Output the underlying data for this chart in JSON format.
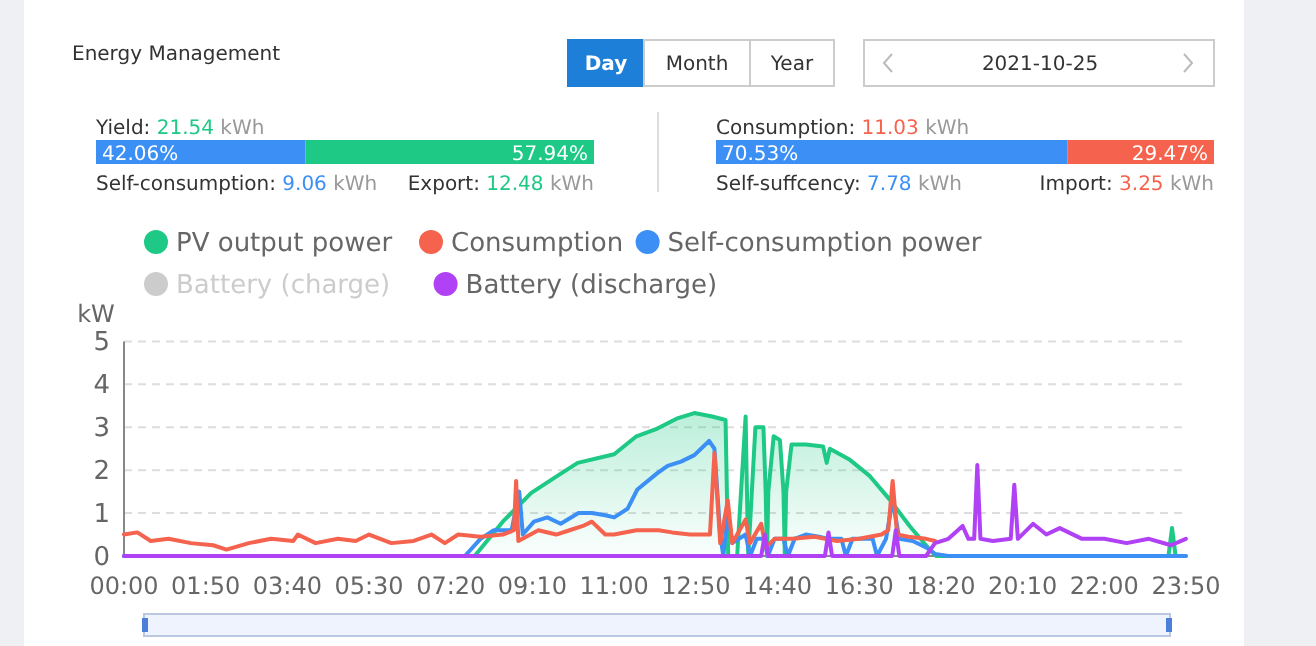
{
  "chart_data": [
    {
      "type": "other",
      "title": "Energy Management",
      "annotations": [
        "Day",
        "Month",
        "Year",
        "2021-10-25",
        "Yield: 21.54 kWh",
        "42.06%",
        "57.94%",
        "Self-consumption: 9.06 kWh",
        "Export: 12.48 kWh",
        "Consumption: 11.03 kWh",
        "70.53%",
        "29.47%",
        "Self-suffcency: 7.78 kWh",
        "Import: 3.25 kWh"
      ]
    },
    {
      "type": "line",
      "ylabel": "kW",
      "xlim": [
        0,
        23.8333
      ],
      "xticks": [
        {
          "value": 0,
          "label": "00:00"
        },
        {
          "value": 1.8333,
          "label": "01:50"
        },
        {
          "value": 3.6667,
          "label": "03:40"
        },
        {
          "value": 5.5,
          "label": "05:30"
        },
        {
          "value": 7.3333,
          "label": "07:20"
        },
        {
          "value": 9.1667,
          "label": "09:10"
        },
        {
          "value": 11,
          "label": "11:00"
        },
        {
          "value": 12.8333,
          "label": "12:50"
        },
        {
          "value": 14.6667,
          "label": "14:40"
        },
        {
          "value": 16.5,
          "label": "16:30"
        },
        {
          "value": 18.3333,
          "label": "18:20"
        },
        {
          "value": 20.1667,
          "label": "20:10"
        },
        {
          "value": 22,
          "label": "22:00"
        },
        {
          "value": 23.8333,
          "label": "23:50"
        }
      ],
      "ylim": [
        0,
        5
      ],
      "yticks": [
        0,
        1,
        2,
        3,
        4,
        5
      ],
      "grid": "y",
      "legend": "top",
      "marker": "none",
      "series": [
        {
          "name": "PV output power",
          "type": "area",
          "color": "#1dc985",
          "x": [
            0,
            7.87,
            8.5,
            9.14,
            9.7,
            10.18,
            11,
            11.5,
            11.97,
            12.4,
            12.8,
            13.2,
            13.5,
            13.53,
            13.56,
            13.76,
            13.95,
            13.98,
            14.01,
            14.17,
            14.35,
            14.4,
            14.43,
            14.46,
            14.58,
            14.72,
            14.8,
            14.83,
            14.86,
            14.98,
            15.3,
            15.69,
            15.77,
            15.84,
            16.29,
            16.74,
            17.18,
            17.63,
            18.08,
            18.23,
            23.44,
            23.52,
            23.6,
            23.83
          ],
          "values": [
            0,
            0,
            0.8,
            1.47,
            1.85,
            2.17,
            2.37,
            2.79,
            2.97,
            3.2,
            3.33,
            3.25,
            3.17,
            1.5,
            0,
            0,
            3.25,
            1.5,
            0,
            3.0,
            3.0,
            1.5,
            0,
            1.5,
            2.79,
            2.7,
            1.5,
            0,
            1.5,
            2.6,
            2.6,
            2.55,
            2.17,
            2.5,
            2.24,
            1.86,
            1.32,
            0.7,
            0.15,
            0,
            0,
            0.65,
            0,
            0
          ]
        },
        {
          "name": "Consumption",
          "type": "line",
          "color": "#f5624d",
          "x": [
            0,
            0.3,
            0.6,
            1,
            1.5,
            2,
            2.3,
            2.8,
            3.3,
            3.8,
            3.9,
            4.3,
            4.8,
            5.2,
            5.5,
            6,
            6.5,
            6.9,
            7.2,
            7.5,
            8,
            8.5,
            8.75,
            8.8,
            8.85,
            9.3,
            9.7,
            10,
            10.3,
            10.5,
            10.8,
            11,
            11.5,
            12,
            12.3,
            12.7,
            13.15,
            13.25,
            13.38,
            13.55,
            13.65,
            13.95,
            14.05,
            14.3,
            14.4,
            14.6,
            15,
            15.5,
            16,
            16.5,
            17,
            17.15,
            17.25,
            17.35,
            17.6,
            18,
            18.2
          ],
          "values": [
            0.5,
            0.55,
            0.35,
            0.4,
            0.3,
            0.25,
            0.15,
            0.3,
            0.4,
            0.35,
            0.5,
            0.3,
            0.4,
            0.35,
            0.5,
            0.3,
            0.35,
            0.5,
            0.3,
            0.5,
            0.45,
            0.5,
            0.6,
            1.75,
            0.35,
            0.6,
            0.5,
            0.6,
            0.7,
            0.8,
            0.5,
            0.5,
            0.6,
            0.6,
            0.55,
            0.5,
            0.5,
            2.4,
            0.3,
            1.3,
            0.3,
            0.85,
            0.3,
            0.75,
            0.2,
            0.4,
            0.4,
            0.45,
            0.35,
            0.4,
            0.5,
            0.6,
            1.75,
            0.5,
            0.45,
            0.4,
            0.35
          ]
        },
        {
          "name": "Self-consumption power",
          "type": "line",
          "color": "#3b8ff5",
          "x": [
            0,
            7.65,
            8,
            8.3,
            8.7,
            8.87,
            8.95,
            9.2,
            9.5,
            9.8,
            10.2,
            10.5,
            10.8,
            11,
            11.3,
            11.52,
            11.97,
            12.2,
            12.5,
            12.8,
            13.13,
            13.25,
            13.38,
            13.45,
            13.55,
            13.65,
            13.8,
            13.95,
            14.05,
            14.2,
            14.35,
            14.45,
            14.6,
            14.8,
            14.9,
            15.05,
            15.3,
            15.6,
            15.8,
            16.1,
            16.2,
            16.35,
            16.8,
            16.9,
            17.1,
            17.25,
            17.4,
            17.7,
            18,
            18.2,
            18.5,
            23.83
          ],
          "values": [
            0,
            0,
            0.4,
            0.6,
            0.6,
            1.5,
            0.5,
            0.8,
            0.9,
            0.75,
            1.0,
            1.0,
            0.95,
            0.9,
            1.1,
            1.55,
            1.93,
            2.1,
            2.2,
            2.35,
            2.68,
            2.5,
            0.5,
            0,
            1.0,
            0.3,
            0.4,
            0.5,
            0,
            0.4,
            0.4,
            0,
            0.4,
            0.4,
            0,
            0.4,
            0.5,
            0.45,
            0.4,
            0.4,
            0,
            0.4,
            0.4,
            0,
            0.4,
            1.3,
            0.4,
            0.35,
            0.2,
            0.05,
            0,
            0
          ]
        },
        {
          "name": "Battery (charge)",
          "type": "line",
          "color": "#cccccc"
        },
        {
          "name": "Battery (discharge)",
          "type": "line",
          "color": "#b041f5",
          "x": [
            0,
            14.3,
            14.38,
            14.46,
            15.73,
            15.81,
            15.89,
            17.24,
            17.32,
            17.4,
            18,
            18.2,
            18.5,
            18.82,
            18.95,
            19.08,
            19.15,
            19.22,
            19.5,
            19.9,
            19.98,
            20.06,
            20.4,
            20.7,
            21.0,
            21.5,
            22,
            22.5,
            23,
            23.5,
            23.83
          ],
          "values": [
            0,
            0,
            0.5,
            0,
            0,
            0.55,
            0,
            0,
            0.6,
            0,
            0,
            0.3,
            0.4,
            0.7,
            0.4,
            0.4,
            2.12,
            0.4,
            0.35,
            0.4,
            1.66,
            0.4,
            0.75,
            0.5,
            0.65,
            0.4,
            0.4,
            0.3,
            0.4,
            0.25,
            0.4
          ]
        }
      ]
    }
  ]
}
